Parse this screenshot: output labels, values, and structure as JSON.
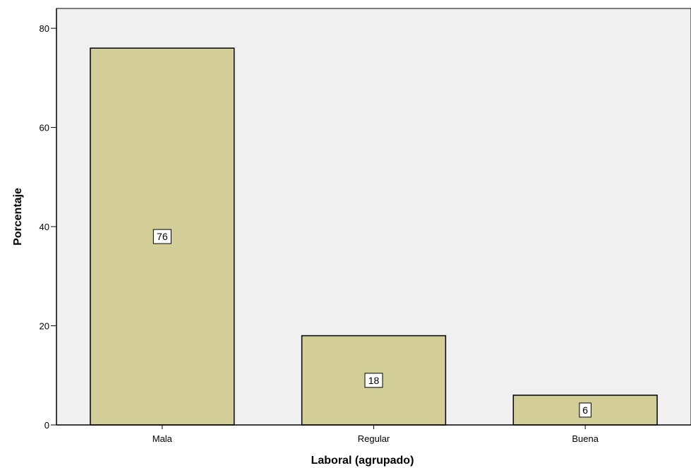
{
  "chart_data": {
    "type": "bar",
    "categories": [
      "Mala",
      "Regular",
      "Buena"
    ],
    "values": [
      76,
      18,
      6
    ],
    "data_labels": [
      "76",
      "18",
      "6"
    ],
    "xlabel": "Laboral (agrupado)",
    "ylabel": "Porcentaje",
    "ylim": [
      0,
      84
    ],
    "yticks": [
      0,
      20,
      40,
      60,
      80
    ],
    "grid": false,
    "legend": "none",
    "colors": {
      "bar_fill": "#d3ce98",
      "bar_stroke": "#000000",
      "plot_background": "#f0f0f0",
      "axis": "#000000",
      "label_box_fill": "#ffffff"
    }
  }
}
